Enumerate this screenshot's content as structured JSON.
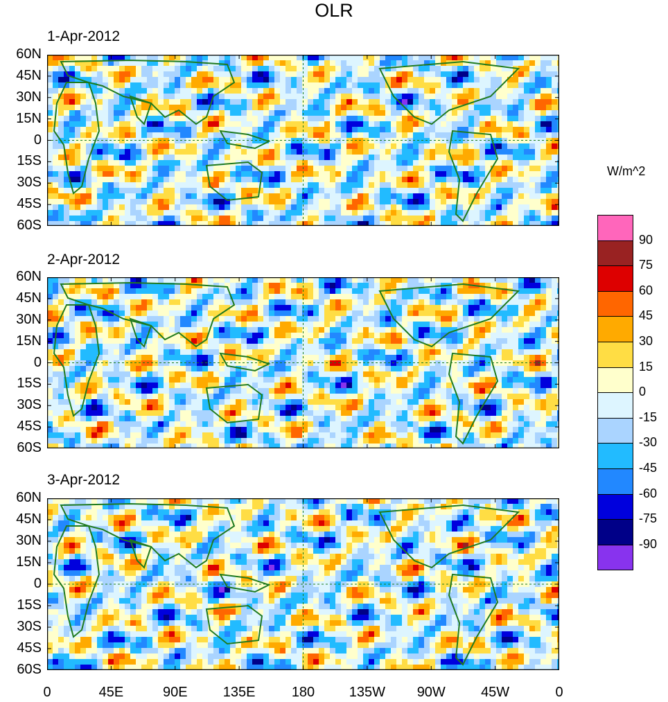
{
  "chart_data": {
    "type": "heatmap",
    "title": "OLR",
    "colorbar_title": "W/m^2",
    "colorbar_labels": [
      "90",
      "75",
      "60",
      "45",
      "30",
      "15",
      "0",
      "-15",
      "-30",
      "-45",
      "-60",
      "-75",
      "-90"
    ],
    "colorbar_colors": [
      "#ff66bb",
      "#992222",
      "#dd0000",
      "#ff6600",
      "#ffaa00",
      "#ffdd44",
      "#ffffcc",
      "#ddf5ff",
      "#aad4ff",
      "#22bbff",
      "#2288ff",
      "#0000dd",
      "#000088",
      "#8833ee"
    ],
    "lat_labels": [
      "60N",
      "45N",
      "30N",
      "15N",
      "0",
      "15S",
      "30S",
      "45S",
      "60S"
    ],
    "lon_labels": [
      "0",
      "45E",
      "90E",
      "135E",
      "180",
      "135W",
      "90W",
      "45W",
      "0"
    ],
    "lat_range": [
      -60,
      60
    ],
    "lon_range": [
      0,
      360
    ],
    "panels": [
      {
        "date": "1-Apr-2012"
      },
      {
        "date": "2-Apr-2012"
      },
      {
        "date": "3-Apr-2012"
      }
    ]
  }
}
